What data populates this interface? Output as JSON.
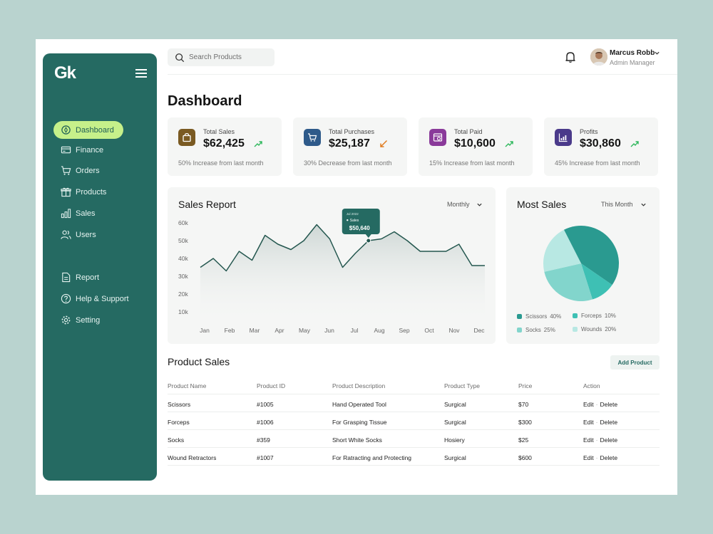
{
  "app": {
    "logo": "Gk"
  },
  "sidebar": {
    "items": [
      {
        "label": "Dashboard",
        "icon": "dashboard-icon",
        "active": true
      },
      {
        "label": "Finance",
        "icon": "finance-icon"
      },
      {
        "label": "Orders",
        "icon": "cart-icon"
      },
      {
        "label": "Products",
        "icon": "gift-icon"
      },
      {
        "label": "Sales",
        "icon": "bar-chart-icon"
      },
      {
        "label": "Users",
        "icon": "users-icon"
      },
      {
        "label": "Report",
        "icon": "report-icon"
      },
      {
        "label": "Help & Support",
        "icon": "help-icon"
      },
      {
        "label": "Setting",
        "icon": "gear-icon"
      }
    ]
  },
  "topbar": {
    "search_placeholder": "Search Products",
    "user_name": "Marcus Robb",
    "user_role": "Admin Manager"
  },
  "page_title": "Dashboard",
  "stats": [
    {
      "label": "Total Sales",
      "value": "$62,425",
      "note": "50% Increase from last month",
      "trend": "up",
      "color": "#7a5a22"
    },
    {
      "label": "Total Purchases",
      "value": "$25,187",
      "note": "30% Decrease from last month",
      "trend": "down",
      "color": "#2e5a8a"
    },
    {
      "label": "Total Paid",
      "value": "$10,600",
      "note": "15% Increase from last month",
      "trend": "up",
      "color": "#8a3a9a"
    },
    {
      "label": "Profits",
      "value": "$30,860",
      "note": "45% Increase from last month",
      "trend": "up",
      "color": "#4a3a8a"
    }
  ],
  "sales_report": {
    "title": "Sales Report",
    "period": "Monthly",
    "tooltip": {
      "date": "Jul 2022",
      "series": "Sales",
      "value": "$50,640"
    }
  },
  "chart_data": {
    "type": "area",
    "categories": [
      "Jan",
      "Feb",
      "Mar",
      "Apr",
      "May",
      "Jun",
      "Jul",
      "Aug",
      "Sep",
      "Oct",
      "Nov",
      "Dec"
    ],
    "x": [
      "Jan",
      "",
      "Feb",
      "",
      "Mar",
      "",
      "Apr",
      "",
      "May",
      "",
      "Jun",
      "",
      "Jul",
      "",
      "Aug",
      "",
      "Sep",
      "",
      "Oct",
      "",
      "Nov",
      "",
      "Dec"
    ],
    "values": [
      35000,
      40000,
      33000,
      44000,
      39000,
      53000,
      48000,
      45000,
      50000,
      59000,
      51000,
      35000,
      43000,
      50000,
      51000,
      55000,
      50000,
      44000,
      44000,
      44000,
      48000,
      36000,
      36000
    ],
    "ytick_labels": [
      "60k",
      "50k",
      "40k",
      "30k",
      "20k",
      "10k"
    ],
    "yticks": [
      60000,
      50000,
      40000,
      30000,
      20000,
      10000
    ],
    "ylim": [
      10000,
      60000
    ],
    "grid": false,
    "color": "#24574f"
  },
  "most_sales": {
    "title": "Most Sales",
    "period": "This Month",
    "slices": [
      {
        "label": "Scissors",
        "pct": "40%",
        "value": 40,
        "color": "#2a9a90"
      },
      {
        "label": "Forceps",
        "pct": "10%",
        "value": 10,
        "color": "#3ec0b4"
      },
      {
        "label": "Socks",
        "pct": "25%",
        "value": 25,
        "color": "#82d5cc"
      },
      {
        "label": "Wounds",
        "pct": "20%",
        "value": 20,
        "color": "#b8e8e3"
      }
    ]
  },
  "product_sales": {
    "title": "Product Sales",
    "add_label": "Add Product",
    "columns": [
      "Product Name",
      "Product ID",
      "Product Description",
      "Product Type",
      "Price",
      "Action"
    ],
    "rows": [
      [
        "Scissors",
        "#1005",
        "Hand Operated Tool",
        "Surgical",
        "$70"
      ],
      [
        "Forceps",
        "#1006",
        "For Grasping Tissue",
        "Surgical",
        "$300"
      ],
      [
        "Socks",
        "#359",
        "Short White Socks",
        "Hosiery",
        "$25"
      ],
      [
        "Wound Retractors",
        "#1007",
        "For Ratracting and Protecting",
        "Surgical",
        "$600"
      ]
    ],
    "edit_label": "Edit",
    "delete_label": "Delete",
    "separator": "·"
  }
}
